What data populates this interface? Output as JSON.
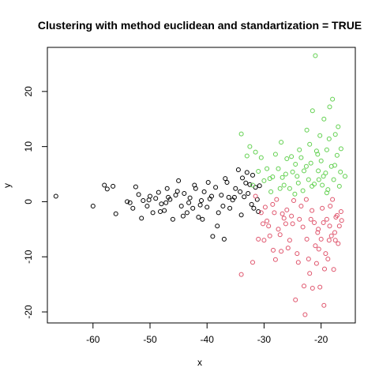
{
  "chart_data": {
    "type": "scatter",
    "title": "Clustering with method euclidean and standartization = TRUE",
    "xlabel": "x",
    "ylabel": "y",
    "xlim": [
      -68,
      -14
    ],
    "ylim": [
      -22,
      28
    ],
    "x_ticks": [
      -60,
      -50,
      -40,
      -30,
      -20
    ],
    "y_ticks": [
      -20,
      -10,
      0,
      10,
      20
    ],
    "grid": false,
    "legend": "none",
    "series": [
      {
        "color": "#000000",
        "points": [
          [
            -66.5,
            1.0
          ],
          [
            -60.0,
            -0.8
          ],
          [
            -57.5,
            2.3
          ],
          [
            -56.5,
            2.8
          ],
          [
            -56.0,
            -2.2
          ],
          [
            -54.0,
            0.0
          ],
          [
            -53.0,
            -1.2
          ],
          [
            -52.5,
            2.7
          ],
          [
            -52.0,
            1.3
          ],
          [
            -51.5,
            -3.0
          ],
          [
            -50.5,
            -0.8
          ],
          [
            -50.0,
            1.0
          ],
          [
            -49.5,
            -2.0
          ],
          [
            -49.0,
            0.6
          ],
          [
            -48.5,
            1.7
          ],
          [
            -48.0,
            -0.4
          ],
          [
            -47.5,
            -1.6
          ],
          [
            -47.0,
            2.4
          ],
          [
            -46.5,
            0.4
          ],
          [
            -46.0,
            -3.2
          ],
          [
            -45.5,
            1.2
          ],
          [
            -45.0,
            3.8
          ],
          [
            -44.5,
            -0.8
          ],
          [
            -44.0,
            1.5
          ],
          [
            -43.5,
            -2.0
          ],
          [
            -43.0,
            0.7
          ],
          [
            -42.5,
            -1.2
          ],
          [
            -42.0,
            2.4
          ],
          [
            -41.5,
            -2.8
          ],
          [
            -41.0,
            0.2
          ],
          [
            -40.5,
            1.8
          ],
          [
            -40.0,
            -1.0
          ],
          [
            -39.5,
            0.5
          ],
          [
            -39.0,
            -6.3
          ],
          [
            -38.5,
            2.6
          ],
          [
            -38.0,
            -2.0
          ],
          [
            -37.5,
            1.2
          ],
          [
            -37.0,
            -6.8
          ],
          [
            -36.5,
            3.5
          ],
          [
            -36.0,
            -1.2
          ],
          [
            -35.5,
            0.3
          ],
          [
            -35.0,
            2.4
          ],
          [
            -34.5,
            5.8
          ],
          [
            -34.0,
            -2.4
          ],
          [
            -33.8,
            4.3
          ],
          [
            -33.5,
            0.9
          ],
          [
            -33.0,
            5.3
          ],
          [
            -32.8,
            1.5
          ],
          [
            -32.5,
            3.1
          ],
          [
            -32.2,
            -0.5
          ],
          [
            -32.0,
            4.8
          ],
          [
            -31.8,
            -1.2
          ],
          [
            -31.5,
            2.6
          ],
          [
            -31.2,
            0.4
          ],
          [
            -31.0,
            -1.8
          ],
          [
            -30.8,
            2.9
          ],
          [
            -35.2,
            0.8
          ],
          [
            -36.8,
            4.2
          ],
          [
            -38.2,
            -4.4
          ],
          [
            -40.8,
            -3.2
          ],
          [
            -42.2,
            3.0
          ],
          [
            -44.2,
            -2.6
          ],
          [
            -46.8,
            0.8
          ],
          [
            -48.2,
            -1.8
          ],
          [
            -50.2,
            0.3
          ],
          [
            -53.5,
            -0.2
          ],
          [
            -58.0,
            3.0
          ],
          [
            -43.2,
            -0.2
          ],
          [
            -39.2,
            1.0
          ],
          [
            -37.2,
            -0.8
          ],
          [
            -34.2,
            1.8
          ],
          [
            -33.2,
            3.4
          ],
          [
            -45.2,
            1.9
          ],
          [
            -41.2,
            -0.6
          ],
          [
            -36.2,
            0.8
          ],
          [
            -47.2,
            -0.2
          ],
          [
            -51.2,
            0.2
          ],
          [
            -39.8,
            3.5
          ]
        ]
      },
      {
        "color": "#DF536B",
        "points": [
          [
            -34.0,
            -13.2
          ],
          [
            -32.0,
            -11.0
          ],
          [
            -31.0,
            -6.8
          ],
          [
            -30.0,
            -7.0
          ],
          [
            -29.5,
            -3.5
          ],
          [
            -29.0,
            -6.2
          ],
          [
            -28.5,
            -0.5
          ],
          [
            -28.0,
            -10.5
          ],
          [
            -27.5,
            -5.0
          ],
          [
            -27.0,
            -9.0
          ],
          [
            -26.5,
            -3.0
          ],
          [
            -26.0,
            -1.5
          ],
          [
            -25.5,
            -7.0
          ],
          [
            -25.0,
            -4.0
          ],
          [
            -24.5,
            -17.8
          ],
          [
            -24.0,
            -11.0
          ],
          [
            -23.5,
            -0.8
          ],
          [
            -23.0,
            -15.3
          ],
          [
            -22.8,
            -20.5
          ],
          [
            -22.5,
            -6.8
          ],
          [
            -22.0,
            -13.0
          ],
          [
            -21.8,
            -3.2
          ],
          [
            -21.5,
            -15.7
          ],
          [
            -21.0,
            -8.0
          ],
          [
            -20.8,
            -11.2
          ],
          [
            -20.5,
            -5.0
          ],
          [
            -20.2,
            -15.5
          ],
          [
            -20.0,
            -6.8
          ],
          [
            -19.8,
            -1.2
          ],
          [
            -19.5,
            -18.8
          ],
          [
            -19.2,
            -9.4
          ],
          [
            -19.0,
            -3.2
          ],
          [
            -18.8,
            -10.4
          ],
          [
            -18.5,
            -4.4
          ],
          [
            -18.2,
            -6.2
          ],
          [
            -18.0,
            0.4
          ],
          [
            -17.8,
            -12.3
          ],
          [
            -17.5,
            -7.0
          ],
          [
            -17.2,
            -2.5
          ],
          [
            -17.0,
            -7.6
          ],
          [
            -16.8,
            -4.4
          ],
          [
            -16.5,
            -1.8
          ],
          [
            -30.5,
            -2.0
          ],
          [
            -29.2,
            -4.4
          ],
          [
            -28.2,
            -2.0
          ],
          [
            -27.2,
            -6.0
          ],
          [
            -26.2,
            -4.0
          ],
          [
            -25.2,
            -2.6
          ],
          [
            -24.2,
            -9.4
          ],
          [
            -23.2,
            -4.6
          ],
          [
            -22.2,
            -10.4
          ],
          [
            -21.2,
            -3.8
          ],
          [
            -20.6,
            -5.6
          ],
          [
            -19.6,
            -3.8
          ],
          [
            -18.6,
            -7.0
          ],
          [
            -17.6,
            -5.6
          ],
          [
            -31.5,
            1.0
          ],
          [
            -29.8,
            -1.0
          ],
          [
            -27.8,
            0.4
          ],
          [
            -26.8,
            -2.2
          ],
          [
            -25.8,
            -8.4
          ],
          [
            -24.8,
            0.2
          ],
          [
            -23.8,
            -3.2
          ],
          [
            -22.6,
            0.4
          ],
          [
            -21.6,
            -1.6
          ],
          [
            -20.4,
            -8.6
          ],
          [
            -19.4,
            -12.2
          ],
          [
            -18.4,
            -0.8
          ],
          [
            -17.4,
            -2.8
          ],
          [
            -16.4,
            -3.4
          ],
          [
            -28.4,
            -8.8
          ],
          [
            -30.2,
            -4.0
          ]
        ]
      },
      {
        "color": "#61D04F",
        "points": [
          [
            -34.0,
            12.3
          ],
          [
            -33.0,
            8.3
          ],
          [
            -32.5,
            10.0
          ],
          [
            -31.5,
            9.0
          ],
          [
            -31.0,
            5.5
          ],
          [
            -30.0,
            3.8
          ],
          [
            -29.5,
            6.0
          ],
          [
            -28.5,
            4.5
          ],
          [
            -28.0,
            8.6
          ],
          [
            -27.5,
            6.0
          ],
          [
            -27.0,
            10.8
          ],
          [
            -26.5,
            3.0
          ],
          [
            -26.0,
            7.8
          ],
          [
            -25.5,
            2.4
          ],
          [
            -25.0,
            5.4
          ],
          [
            -24.5,
            6.8
          ],
          [
            -24.0,
            3.4
          ],
          [
            -23.5,
            8.0
          ],
          [
            -23.0,
            5.6
          ],
          [
            -22.5,
            13.0
          ],
          [
            -22.2,
            4.0
          ],
          [
            -22.0,
            10.4
          ],
          [
            -21.8,
            7.0
          ],
          [
            -21.5,
            16.5
          ],
          [
            -21.2,
            3.2
          ],
          [
            -21.0,
            26.5
          ],
          [
            -20.8,
            9.2
          ],
          [
            -20.5,
            5.6
          ],
          [
            -20.2,
            12.0
          ],
          [
            -20.0,
            7.4
          ],
          [
            -19.8,
            3.0
          ],
          [
            -19.5,
            15.0
          ],
          [
            -19.2,
            5.2
          ],
          [
            -19.0,
            9.4
          ],
          [
            -18.8,
            2.2
          ],
          [
            -18.5,
            17.2
          ],
          [
            -18.2,
            6.4
          ],
          [
            -18.0,
            18.6
          ],
          [
            -17.8,
            4.0
          ],
          [
            -17.5,
            12.2
          ],
          [
            -17.2,
            8.4
          ],
          [
            -17.0,
            13.6
          ],
          [
            -16.8,
            2.8
          ],
          [
            -16.5,
            9.6
          ],
          [
            -15.8,
            4.6
          ],
          [
            -32.0,
            3.0
          ],
          [
            -30.5,
            8.0
          ],
          [
            -29.0,
            4.2
          ],
          [
            -27.2,
            2.4
          ],
          [
            -26.2,
            5.0
          ],
          [
            -25.2,
            8.2
          ],
          [
            -24.2,
            4.6
          ],
          [
            -23.2,
            2.0
          ],
          [
            -22.6,
            6.4
          ],
          [
            -21.6,
            2.8
          ],
          [
            -20.6,
            8.6
          ],
          [
            -19.6,
            4.6
          ],
          [
            -18.6,
            11.4
          ],
          [
            -17.6,
            6.6
          ],
          [
            -16.6,
            5.4
          ],
          [
            -19.0,
            1.6
          ],
          [
            -20.4,
            4.0
          ],
          [
            -23.8,
            9.4
          ],
          [
            -28.8,
            1.8
          ],
          [
            -26.8,
            4.4
          ],
          [
            -24.6,
            1.4
          ]
        ]
      }
    ]
  }
}
